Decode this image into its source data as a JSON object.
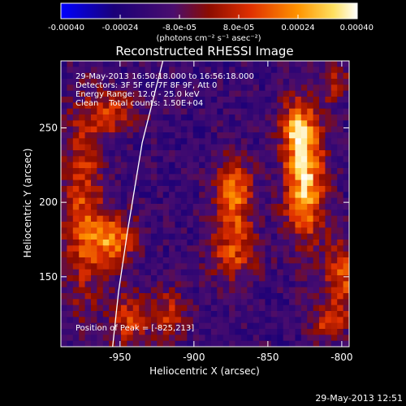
{
  "chart_data": {
    "type": "heatmap",
    "title": "Reconstructed RHESSI Image",
    "xlabel": "Heliocentric X (arcsec)",
    "ylabel": "Heliocentric Y (arcsec)",
    "xlim": [
      -990,
      -795
    ],
    "ylim": [
      103,
      295
    ],
    "xticks": [
      -950,
      -900,
      -850,
      -800
    ],
    "xtick_labels": [
      "-950",
      "-900",
      "-850",
      "-800"
    ],
    "yticks": [
      150,
      200,
      250
    ],
    "ytick_labels": [
      "150",
      "200",
      "250"
    ],
    "colorbar": {
      "range": [
        -0.0004,
        0.0004
      ],
      "ticks": [
        -0.0004,
        -0.00024,
        -8e-05,
        8e-05,
        0.00024,
        0.0004
      ],
      "tick_labels": [
        "-0.00040",
        "-0.00024",
        "-8.0e-05",
        "8.0e-05",
        "0.00024",
        "0.00040"
      ],
      "units": "(photons cm⁻² s⁻¹ asec⁻²)",
      "colors": [
        "#0000ff",
        "#1a0078",
        "#4a0d6e",
        "#8c0c00",
        "#e03000",
        "#ff9400",
        "#ffe060",
        "#ffffff"
      ]
    },
    "annotations": [
      "29-May-2013 16:50:18.000 to 16:56:18.000",
      "Detectors: 3F 5F 6F 7F 8F 9F, Att 0",
      "Energy Range: 12.0 - 25.0 keV",
      "Clean    Total counts: 1.50E+04"
    ],
    "peak_label": "Position of Peak = [-825,213]",
    "peak": {
      "x": -825,
      "y": 213
    },
    "limb_curve": [
      [
        -921,
        295
      ],
      [
        -935,
        240
      ],
      [
        -945,
        180
      ],
      [
        -951,
        140
      ],
      [
        -955,
        103
      ]
    ],
    "sources": [
      {
        "x": -825,
        "y": 213,
        "sx": 10,
        "sy": 28,
        "amp": 1.0
      },
      {
        "x": -830,
        "y": 250,
        "sx": 8,
        "sy": 14,
        "amp": 0.7
      },
      {
        "x": -873,
        "y": 205,
        "sx": 9,
        "sy": 18,
        "amp": 0.8
      },
      {
        "x": -873,
        "y": 165,
        "sx": 12,
        "sy": 14,
        "amp": 0.55
      },
      {
        "x": -955,
        "y": 175,
        "sx": 11,
        "sy": 12,
        "amp": 0.8
      },
      {
        "x": -975,
        "y": 195,
        "sx": 10,
        "sy": 50,
        "amp": 0.6
      },
      {
        "x": -945,
        "y": 120,
        "sx": 8,
        "sy": 14,
        "amp": 0.55
      },
      {
        "x": -918,
        "y": 125,
        "sx": 10,
        "sy": 12,
        "amp": 0.5
      },
      {
        "x": -955,
        "y": 260,
        "sx": 12,
        "sy": 10,
        "amp": 0.55
      },
      {
        "x": -800,
        "y": 150,
        "sx": 8,
        "sy": 18,
        "amp": 0.65
      },
      {
        "x": -810,
        "y": 120,
        "sx": 8,
        "sy": 10,
        "amp": 0.5
      },
      {
        "x": -805,
        "y": 280,
        "sx": 8,
        "sy": 10,
        "amp": 0.4
      }
    ]
  },
  "timestamp": "29-May-2013 12:51"
}
